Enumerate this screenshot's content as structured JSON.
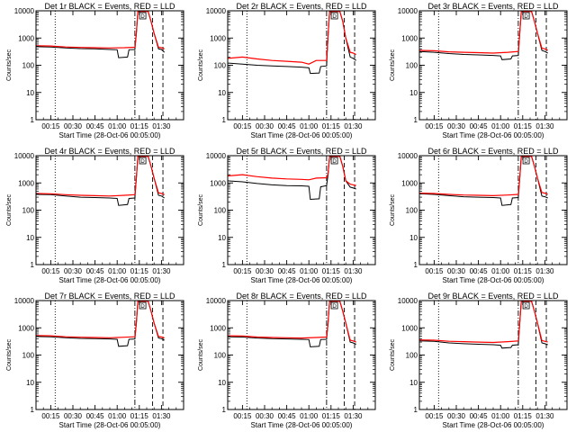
{
  "shared": {
    "xlabel": "Start Time (28-Oct-06 00:05:00)",
    "ylabel": "Counts/sec",
    "x_ticks": [
      "00:15",
      "00:30",
      "00:45",
      "01:00",
      "01:15",
      "01:30"
    ],
    "x_tick_values": [
      10,
      25,
      40,
      55,
      70,
      85
    ],
    "y_ticks": [
      "1",
      "10",
      "100",
      "1000",
      "10000"
    ],
    "y_tick_values": [
      1,
      10,
      100,
      1000,
      10000
    ],
    "xlim": [
      0,
      100
    ],
    "ylim": [
      1,
      10000
    ],
    "y_scale": "log",
    "colors": {
      "events": "#000000",
      "lld": "#ff0000",
      "axes": "#000000"
    },
    "vlines": [
      {
        "x": 13,
        "style": "dotted"
      },
      {
        "x": 67,
        "style": "dashdot"
      },
      {
        "x": 79,
        "style": "dashed"
      },
      {
        "x": 86,
        "style": "dashed"
      }
    ],
    "marker_label": "D",
    "marker_x": 72
  },
  "chart_data": [
    {
      "type": "line",
      "title": "Det 1r BLACK = Events, RED = LLD",
      "events": [
        [
          0,
          480
        ],
        [
          10,
          470
        ],
        [
          20,
          430
        ],
        [
          30,
          410
        ],
        [
          40,
          400
        ],
        [
          50,
          380
        ],
        [
          55,
          370
        ],
        [
          56,
          190
        ],
        [
          62,
          200
        ],
        [
          63,
          370
        ],
        [
          67,
          380
        ],
        [
          68,
          1500
        ],
        [
          69,
          9500
        ],
        [
          76,
          9500
        ],
        [
          78,
          4000
        ],
        [
          80,
          1500
        ],
        [
          83,
          400
        ],
        [
          85,
          380
        ],
        [
          87,
          300
        ]
      ],
      "lld": [
        [
          0,
          520
        ],
        [
          10,
          510
        ],
        [
          20,
          470
        ],
        [
          30,
          450
        ],
        [
          40,
          440
        ],
        [
          50,
          430
        ],
        [
          60,
          440
        ],
        [
          67,
          460
        ],
        [
          68,
          1500
        ],
        [
          69,
          9500
        ],
        [
          76,
          9500
        ],
        [
          78,
          4000
        ],
        [
          80,
          1500
        ],
        [
          83,
          460
        ],
        [
          85,
          440
        ],
        [
          87,
          400
        ]
      ]
    },
    {
      "type": "line",
      "title": "Det 2r BLACK = Events, RED = LLD",
      "events": [
        [
          0,
          120
        ],
        [
          10,
          110
        ],
        [
          20,
          100
        ],
        [
          30,
          95
        ],
        [
          40,
          90
        ],
        [
          50,
          85
        ],
        [
          55,
          80
        ],
        [
          56,
          50
        ],
        [
          62,
          52
        ],
        [
          63,
          90
        ],
        [
          67,
          95
        ],
        [
          68,
          1200
        ],
        [
          69,
          9500
        ],
        [
          76,
          9500
        ],
        [
          78,
          4000
        ],
        [
          80,
          1000
        ],
        [
          83,
          200
        ],
        [
          85,
          180
        ],
        [
          87,
          150
        ]
      ],
      "lld": [
        [
          0,
          180
        ],
        [
          10,
          200
        ],
        [
          20,
          170
        ],
        [
          30,
          150
        ],
        [
          40,
          140
        ],
        [
          50,
          130
        ],
        [
          55,
          110
        ],
        [
          60,
          150
        ],
        [
          67,
          150
        ],
        [
          68,
          1200
        ],
        [
          69,
          9500
        ],
        [
          76,
          9500
        ],
        [
          78,
          4000
        ],
        [
          80,
          1000
        ],
        [
          83,
          300
        ],
        [
          85,
          280
        ],
        [
          87,
          250
        ]
      ]
    },
    {
      "type": "line",
      "title": "Det 3r BLACK = Events, RED = LLD",
      "events": [
        [
          0,
          320
        ],
        [
          10,
          300
        ],
        [
          20,
          270
        ],
        [
          30,
          250
        ],
        [
          40,
          240
        ],
        [
          50,
          230
        ],
        [
          55,
          220
        ],
        [
          56,
          160
        ],
        [
          62,
          170
        ],
        [
          63,
          220
        ],
        [
          67,
          230
        ],
        [
          68,
          1500
        ],
        [
          69,
          9500
        ],
        [
          76,
          9500
        ],
        [
          78,
          4000
        ],
        [
          80,
          1500
        ],
        [
          83,
          350
        ],
        [
          85,
          320
        ],
        [
          87,
          280
        ]
      ],
      "lld": [
        [
          0,
          350
        ],
        [
          10,
          340
        ],
        [
          20,
          310
        ],
        [
          30,
          300
        ],
        [
          40,
          290
        ],
        [
          50,
          280
        ],
        [
          60,
          300
        ],
        [
          67,
          320
        ],
        [
          68,
          1500
        ],
        [
          69,
          9500
        ],
        [
          76,
          9500
        ],
        [
          78,
          4000
        ],
        [
          80,
          1500
        ],
        [
          83,
          420
        ],
        [
          85,
          400
        ],
        [
          87,
          350
        ]
      ]
    },
    {
      "type": "line",
      "title": "Det 4r BLACK = Events, RED = LLD",
      "events": [
        [
          0,
          380
        ],
        [
          10,
          370
        ],
        [
          20,
          330
        ],
        [
          30,
          300
        ],
        [
          40,
          290
        ],
        [
          50,
          280
        ],
        [
          55,
          270
        ],
        [
          56,
          150
        ],
        [
          62,
          160
        ],
        [
          63,
          270
        ],
        [
          67,
          280
        ],
        [
          68,
          1500
        ],
        [
          69,
          9500
        ],
        [
          76,
          9500
        ],
        [
          78,
          4000
        ],
        [
          80,
          1500
        ],
        [
          83,
          350
        ],
        [
          85,
          330
        ],
        [
          87,
          280
        ]
      ],
      "lld": [
        [
          0,
          410
        ],
        [
          10,
          400
        ],
        [
          20,
          370
        ],
        [
          30,
          350
        ],
        [
          40,
          340
        ],
        [
          50,
          330
        ],
        [
          60,
          350
        ],
        [
          67,
          370
        ],
        [
          68,
          1500
        ],
        [
          69,
          9500
        ],
        [
          76,
          9500
        ],
        [
          78,
          4000
        ],
        [
          80,
          1500
        ],
        [
          83,
          430
        ],
        [
          85,
          410
        ],
        [
          87,
          370
        ]
      ]
    },
    {
      "type": "line",
      "title": "Det 5r BLACK = Events, RED = LLD",
      "events": [
        [
          0,
          1200
        ],
        [
          10,
          1100
        ],
        [
          20,
          950
        ],
        [
          30,
          850
        ],
        [
          40,
          800
        ],
        [
          50,
          780
        ],
        [
          55,
          750
        ],
        [
          56,
          250
        ],
        [
          62,
          260
        ],
        [
          63,
          720
        ],
        [
          67,
          800
        ],
        [
          68,
          2000
        ],
        [
          69,
          9500
        ],
        [
          76,
          9500
        ],
        [
          78,
          4000
        ],
        [
          80,
          1200
        ],
        [
          83,
          700
        ],
        [
          85,
          650
        ],
        [
          87,
          600
        ]
      ],
      "lld": [
        [
          0,
          1800
        ],
        [
          10,
          2000
        ],
        [
          20,
          1700
        ],
        [
          30,
          1500
        ],
        [
          40,
          1400
        ],
        [
          50,
          1350
        ],
        [
          55,
          1300
        ],
        [
          60,
          1500
        ],
        [
          67,
          1550
        ],
        [
          68,
          2200
        ],
        [
          69,
          9500
        ],
        [
          76,
          9500
        ],
        [
          78,
          4000
        ],
        [
          80,
          1200
        ],
        [
          83,
          900
        ],
        [
          85,
          850
        ],
        [
          87,
          800
        ]
      ]
    },
    {
      "type": "line",
      "title": "Det 6r BLACK = Events, RED = LLD",
      "events": [
        [
          0,
          400
        ],
        [
          10,
          380
        ],
        [
          20,
          340
        ],
        [
          30,
          310
        ],
        [
          40,
          300
        ],
        [
          50,
          290
        ],
        [
          55,
          280
        ],
        [
          56,
          150
        ],
        [
          62,
          160
        ],
        [
          63,
          280
        ],
        [
          67,
          290
        ],
        [
          68,
          1500
        ],
        [
          69,
          9500
        ],
        [
          76,
          9500
        ],
        [
          78,
          4000
        ],
        [
          80,
          1500
        ],
        [
          83,
          330
        ],
        [
          85,
          310
        ],
        [
          87,
          280
        ]
      ],
      "lld": [
        [
          0,
          420
        ],
        [
          10,
          410
        ],
        [
          20,
          380
        ],
        [
          30,
          360
        ],
        [
          40,
          350
        ],
        [
          50,
          340
        ],
        [
          60,
          360
        ],
        [
          67,
          380
        ],
        [
          68,
          1500
        ],
        [
          69,
          9500
        ],
        [
          76,
          9500
        ],
        [
          78,
          4000
        ],
        [
          80,
          1500
        ],
        [
          83,
          440
        ],
        [
          85,
          420
        ],
        [
          87,
          380
        ]
      ]
    },
    {
      "type": "line",
      "title": "Det 7r BLACK = Events, RED = LLD",
      "events": [
        [
          0,
          480
        ],
        [
          10,
          470
        ],
        [
          20,
          430
        ],
        [
          30,
          410
        ],
        [
          40,
          400
        ],
        [
          50,
          390
        ],
        [
          55,
          380
        ],
        [
          56,
          210
        ],
        [
          62,
          220
        ],
        [
          63,
          380
        ],
        [
          67,
          390
        ],
        [
          68,
          1500
        ],
        [
          69,
          9500
        ],
        [
          76,
          9500
        ],
        [
          78,
          4000
        ],
        [
          80,
          1500
        ],
        [
          83,
          420
        ],
        [
          85,
          400
        ],
        [
          87,
          350
        ]
      ],
      "lld": [
        [
          0,
          520
        ],
        [
          10,
          510
        ],
        [
          20,
          470
        ],
        [
          30,
          450
        ],
        [
          40,
          440
        ],
        [
          50,
          430
        ],
        [
          60,
          450
        ],
        [
          67,
          470
        ],
        [
          68,
          1500
        ],
        [
          69,
          9500
        ],
        [
          76,
          9500
        ],
        [
          78,
          4000
        ],
        [
          80,
          1500
        ],
        [
          83,
          480
        ],
        [
          85,
          460
        ],
        [
          87,
          420
        ]
      ]
    },
    {
      "type": "line",
      "title": "Det 8r BLACK = Events, RED = LLD",
      "events": [
        [
          0,
          470
        ],
        [
          10,
          460
        ],
        [
          20,
          420
        ],
        [
          30,
          400
        ],
        [
          40,
          390
        ],
        [
          50,
          380
        ],
        [
          55,
          370
        ],
        [
          56,
          200
        ],
        [
          62,
          210
        ],
        [
          63,
          370
        ],
        [
          67,
          380
        ],
        [
          68,
          1500
        ],
        [
          69,
          9500
        ],
        [
          76,
          9500
        ],
        [
          78,
          4000
        ],
        [
          80,
          1500
        ],
        [
          83,
          300
        ],
        [
          85,
          280
        ],
        [
          87,
          250
        ]
      ],
      "lld": [
        [
          0,
          510
        ],
        [
          10,
          500
        ],
        [
          20,
          460
        ],
        [
          30,
          440
        ],
        [
          40,
          430
        ],
        [
          50,
          420
        ],
        [
          60,
          440
        ],
        [
          67,
          460
        ],
        [
          68,
          1500
        ],
        [
          69,
          9500
        ],
        [
          76,
          9500
        ],
        [
          78,
          4000
        ],
        [
          80,
          1500
        ],
        [
          83,
          350
        ],
        [
          85,
          330
        ],
        [
          87,
          300
        ]
      ]
    },
    {
      "type": "line",
      "title": "Det 9r BLACK = Events, RED = LLD",
      "events": [
        [
          0,
          330
        ],
        [
          10,
          320
        ],
        [
          20,
          280
        ],
        [
          30,
          260
        ],
        [
          40,
          250
        ],
        [
          50,
          240
        ],
        [
          55,
          230
        ],
        [
          56,
          180
        ],
        [
          62,
          190
        ],
        [
          63,
          230
        ],
        [
          67,
          240
        ],
        [
          68,
          1500
        ],
        [
          69,
          9500
        ],
        [
          76,
          9500
        ],
        [
          78,
          4000
        ],
        [
          80,
          1500
        ],
        [
          83,
          280
        ],
        [
          85,
          260
        ],
        [
          87,
          240
        ]
      ],
      "lld": [
        [
          0,
          360
        ],
        [
          10,
          350
        ],
        [
          20,
          320
        ],
        [
          30,
          310
        ],
        [
          40,
          300
        ],
        [
          50,
          290
        ],
        [
          60,
          310
        ],
        [
          67,
          330
        ],
        [
          68,
          1500
        ],
        [
          69,
          9500
        ],
        [
          76,
          9500
        ],
        [
          78,
          4000
        ],
        [
          80,
          1500
        ],
        [
          83,
          340
        ],
        [
          85,
          320
        ],
        [
          87,
          300
        ]
      ]
    }
  ]
}
